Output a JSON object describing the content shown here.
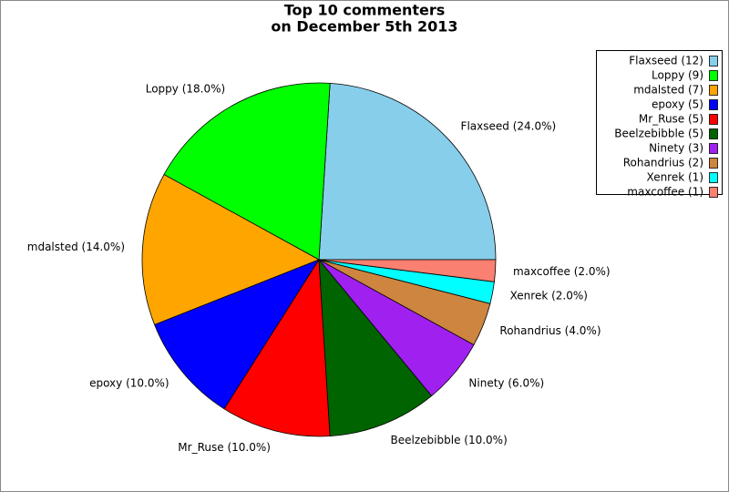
{
  "chart_data": {
    "type": "pie",
    "title": [
      "Top 10 commenters",
      "on December 5th 2013"
    ],
    "categories": [
      "Flaxseed",
      "Loppy",
      "mdalsted",
      "epoxy",
      "Mr_Ruse",
      "Beelzebibble",
      "Ninety",
      "Rohandrius",
      "Xenrek",
      "maxcoffee"
    ],
    "values": [
      12,
      9,
      7,
      5,
      5,
      5,
      3,
      2,
      1,
      1
    ],
    "value_labels": [
      "Flaxseed (24.0%)",
      "Loppy (18.0%)",
      "mdalsted (14.0%)",
      "epoxy (10.0%)",
      "Mr_Ruse (10.0%)",
      "Beelzebibble (10.0%)",
      "Ninety (6.0%)",
      "Rohandrius (4.0%)",
      "Xenrek (2.0%)",
      "maxcoffee (2.0%)"
    ],
    "legend_labels": [
      "Flaxseed (12)",
      "Loppy (9)",
      "mdalsted (7)",
      "epoxy (5)",
      "Mr_Ruse (5)",
      "Beelzebibble (5)",
      "Ninety (3)",
      "Rohandrius (2)",
      "Xenrek (1)",
      "maxcoffee (1)"
    ],
    "colors": [
      "#87ceeb",
      "#00ff00",
      "#ffa500",
      "#0000ff",
      "#ff0000",
      "#006400",
      "#a020f0",
      "#cd853f",
      "#00ffff",
      "#fa8072"
    ],
    "legend_position": "upper right"
  }
}
